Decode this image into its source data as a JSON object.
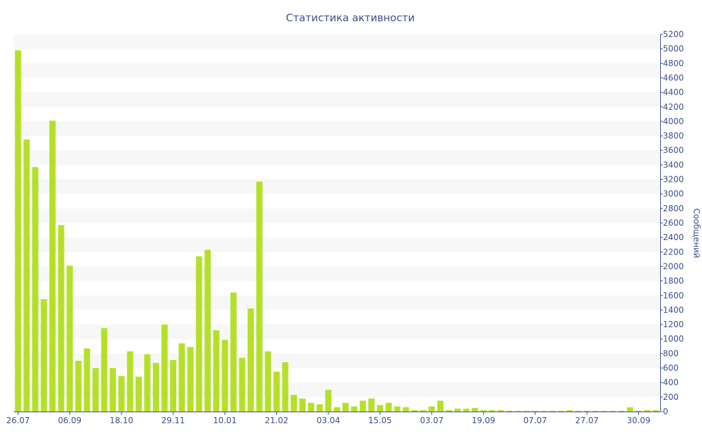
{
  "chart_data": {
    "type": "bar",
    "title": "Статистика активности",
    "xlabel": "",
    "ylabel": "Сообщений",
    "ylim": [
      0,
      5200
    ],
    "y_ticks": [
      0,
      200,
      400,
      600,
      800,
      1000,
      1200,
      1400,
      1600,
      1800,
      2000,
      2200,
      2400,
      2600,
      2800,
      3000,
      3200,
      3400,
      3600,
      3800,
      4000,
      4200,
      4400,
      4600,
      4800,
      5000,
      5200
    ],
    "x_tick_labels": [
      {
        "index": 0,
        "label": "26.07"
      },
      {
        "index": 6,
        "label": "06.09"
      },
      {
        "index": 12,
        "label": "18.10"
      },
      {
        "index": 18,
        "label": "29.11"
      },
      {
        "index": 24,
        "label": "10.01"
      },
      {
        "index": 30,
        "label": "21.02"
      },
      {
        "index": 36,
        "label": "03.04"
      },
      {
        "index": 42,
        "label": "15.05"
      },
      {
        "index": 48,
        "label": "03.07"
      },
      {
        "index": 54,
        "label": "19.09"
      },
      {
        "index": 60,
        "label": "07.07"
      },
      {
        "index": 66,
        "label": "27.07"
      },
      {
        "index": 72,
        "label": "30.09"
      }
    ],
    "values": [
      4980,
      3750,
      3370,
      1550,
      4010,
      2570,
      2010,
      700,
      870,
      600,
      1150,
      600,
      490,
      830,
      480,
      790,
      670,
      1200,
      710,
      940,
      890,
      2140,
      2230,
      1120,
      990,
      1640,
      740,
      1420,
      3170,
      830,
      550,
      680,
      230,
      180,
      120,
      100,
      300,
      60,
      120,
      70,
      150,
      180,
      90,
      120,
      70,
      60,
      20,
      20,
      70,
      150,
      20,
      40,
      40,
      50,
      20,
      20,
      20,
      10,
      10,
      10,
      10,
      10,
      10,
      10,
      20,
      10,
      10,
      10,
      10,
      10,
      10,
      60,
      10,
      20,
      20
    ],
    "grid": true,
    "legend": "none",
    "bar_color": "#b5e029",
    "band_color": "#f7f7f7",
    "axis_color": "#3a4f8c"
  }
}
